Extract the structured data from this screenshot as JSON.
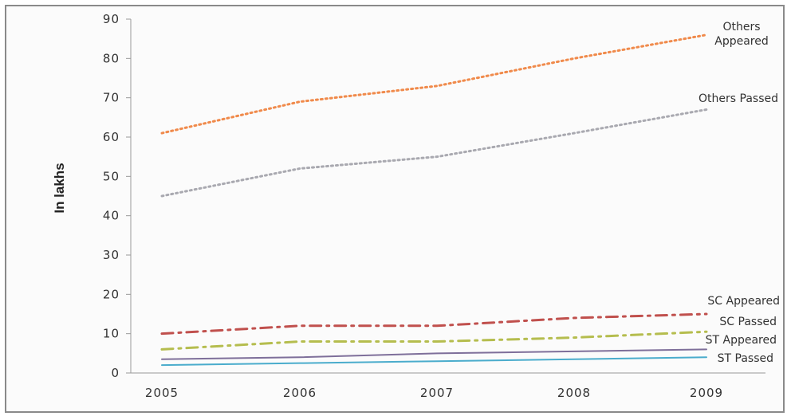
{
  "chart_data": {
    "type": "line",
    "title": "",
    "xlabel": "",
    "ylabel": "In lakhs",
    "categories": [
      "2005",
      "2006",
      "2007",
      "2008",
      "2009"
    ],
    "ylim": [
      0,
      90
    ],
    "yticks": [
      "0",
      "10",
      "20",
      "30",
      "40",
      "50",
      "60",
      "70",
      "80",
      "90"
    ],
    "grid": false,
    "legend": "labels at line ends (right)",
    "series": [
      {
        "name": "Others Appeared",
        "label_lines": [
          "Others",
          "Appeared"
        ],
        "values": [
          61,
          69,
          73,
          80,
          86
        ],
        "color": "#f08a4b",
        "dash": "dotted"
      },
      {
        "name": "Others Passed",
        "label_lines": [
          "Others Passed"
        ],
        "values": [
          45,
          52,
          55,
          61,
          67
        ],
        "color": "#a9a9b0",
        "dash": "dotted"
      },
      {
        "name": "SC Appeared",
        "label_lines": [
          "SC Appeared"
        ],
        "values": [
          10,
          12,
          12,
          14,
          15
        ],
        "color": "#c0504d",
        "dash": "dashdot"
      },
      {
        "name": "SC Passed",
        "label_lines": [
          "SC Passed"
        ],
        "values": [
          6,
          8,
          8,
          9,
          10.5
        ],
        "color": "#b5bd4e",
        "dash": "dashdot"
      },
      {
        "name": "ST Appeared",
        "label_lines": [
          "ST Appeared"
        ],
        "values": [
          3.5,
          4,
          5,
          5.5,
          6
        ],
        "color": "#7e6f9a",
        "dash": "solid"
      },
      {
        "name": "ST Passed",
        "label_lines": [
          "ST Passed"
        ],
        "values": [
          2,
          2.5,
          3,
          3.5,
          4
        ],
        "color": "#4aaccc",
        "dash": "solid"
      }
    ]
  }
}
